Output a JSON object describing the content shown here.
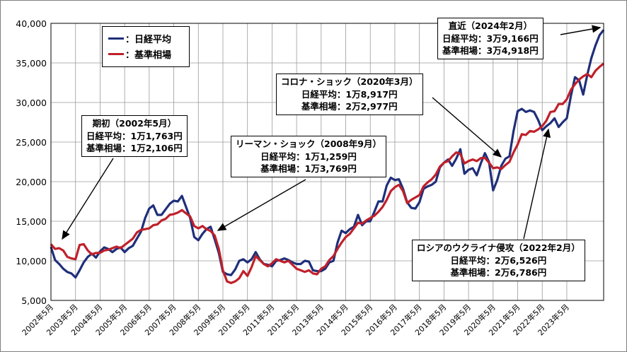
{
  "chart_data": {
    "type": "line",
    "x_start": "2002年5月",
    "y_ticks": [
      "40,000",
      "35,000",
      "30,000",
      "25,000",
      "20,000",
      "15,000",
      "10,000",
      "5,000"
    ],
    "ylim": [
      5000,
      40000
    ],
    "x_ticks": [
      "2002年5月",
      "2003年5月",
      "2004年5月",
      "2005年5月",
      "2006年5月",
      "2007年5月",
      "2008年5月",
      "2009年5月",
      "2010年5月",
      "2011年5月",
      "2012年5月",
      "2013年5月",
      "2014年5月",
      "2015年5月",
      "2016年5月",
      "2017年5月",
      "2018年5月",
      "2019年5月",
      "2020年5月",
      "2021年5月",
      "2022年5月",
      "2023年5月"
    ],
    "grid": true,
    "legend_position": "top-left",
    "series": [
      {
        "name": "日経平均",
        "color": "#1f2f7a",
        "points": [
          [
            0,
            11763
          ],
          [
            2,
            10100
          ],
          [
            4,
            9600
          ],
          [
            6,
            9000
          ],
          [
            8,
            8600
          ],
          [
            10,
            8400
          ],
          [
            12,
            7900
          ],
          [
            14,
            8800
          ],
          [
            16,
            9800
          ],
          [
            18,
            10500
          ],
          [
            20,
            10900
          ],
          [
            22,
            10400
          ],
          [
            24,
            11200
          ],
          [
            26,
            11700
          ],
          [
            28,
            11500
          ],
          [
            30,
            11100
          ],
          [
            32,
            11500
          ],
          [
            34,
            11700
          ],
          [
            36,
            11100
          ],
          [
            38,
            11600
          ],
          [
            40,
            11900
          ],
          [
            42,
            12800
          ],
          [
            44,
            13700
          ],
          [
            46,
            15400
          ],
          [
            48,
            16600
          ],
          [
            50,
            17000
          ],
          [
            52,
            15800
          ],
          [
            54,
            15800
          ],
          [
            56,
            16500
          ],
          [
            58,
            17200
          ],
          [
            60,
            17600
          ],
          [
            62,
            17500
          ],
          [
            64,
            18200
          ],
          [
            66,
            16800
          ],
          [
            68,
            15400
          ],
          [
            70,
            13000
          ],
          [
            72,
            12600
          ],
          [
            74,
            13400
          ],
          [
            76,
            14000
          ],
          [
            78,
            14300
          ],
          [
            80,
            12700
          ],
          [
            82,
            11000
          ],
          [
            84,
            8600
          ],
          [
            86,
            8300
          ],
          [
            88,
            8200
          ],
          [
            90,
            8900
          ],
          [
            92,
            10000
          ],
          [
            94,
            10200
          ],
          [
            96,
            9800
          ],
          [
            98,
            10200
          ],
          [
            100,
            11100
          ],
          [
            102,
            10200
          ],
          [
            104,
            9600
          ],
          [
            106,
            9500
          ],
          [
            108,
            9300
          ],
          [
            110,
            10000
          ],
          [
            112,
            10100
          ],
          [
            114,
            10300
          ],
          [
            116,
            10100
          ],
          [
            118,
            9800
          ],
          [
            120,
            9600
          ],
          [
            122,
            9600
          ],
          [
            124,
            10000
          ],
          [
            126,
            9900
          ],
          [
            128,
            8800
          ],
          [
            130,
            8700
          ],
          [
            132,
            8700
          ],
          [
            134,
            9000
          ],
          [
            136,
            9800
          ],
          [
            138,
            10000
          ],
          [
            140,
            12300
          ],
          [
            142,
            13800
          ],
          [
            144,
            13500
          ],
          [
            146,
            14000
          ],
          [
            148,
            14300
          ],
          [
            150,
            15800
          ],
          [
            152,
            14500
          ],
          [
            154,
            15000
          ],
          [
            156,
            15000
          ],
          [
            158,
            16200
          ],
          [
            160,
            17500
          ],
          [
            162,
            17500
          ],
          [
            164,
            19500
          ],
          [
            166,
            20500
          ],
          [
            168,
            20200
          ],
          [
            170,
            20300
          ],
          [
            172,
            19100
          ],
          [
            174,
            17400
          ],
          [
            176,
            16700
          ],
          [
            178,
            16600
          ],
          [
            180,
            17400
          ],
          [
            182,
            19100
          ],
          [
            184,
            19400
          ],
          [
            186,
            19600
          ],
          [
            188,
            20000
          ],
          [
            190,
            21800
          ],
          [
            192,
            22400
          ],
          [
            194,
            22800
          ],
          [
            196,
            22000
          ],
          [
            198,
            22900
          ],
          [
            200,
            24100
          ],
          [
            202,
            21000
          ],
          [
            204,
            21500
          ],
          [
            206,
            21700
          ],
          [
            208,
            20800
          ],
          [
            210,
            22300
          ],
          [
            212,
            23600
          ],
          [
            214,
            22500
          ],
          [
            216,
            18900
          ],
          [
            218,
            20200
          ],
          [
            220,
            22000
          ],
          [
            222,
            22900
          ],
          [
            224,
            23200
          ],
          [
            226,
            26400
          ],
          [
            228,
            28900
          ],
          [
            230,
            29200
          ],
          [
            232,
            28800
          ],
          [
            234,
            29000
          ],
          [
            236,
            28800
          ],
          [
            238,
            27800
          ],
          [
            240,
            26500
          ],
          [
            242,
            27000
          ],
          [
            244,
            27400
          ],
          [
            246,
            28000
          ],
          [
            248,
            26900
          ],
          [
            250,
            27500
          ],
          [
            252,
            28000
          ],
          [
            254,
            30800
          ],
          [
            256,
            33200
          ],
          [
            258,
            32800
          ],
          [
            260,
            31000
          ],
          [
            262,
            33500
          ],
          [
            264,
            35600
          ],
          [
            266,
            37200
          ],
          [
            268,
            38500
          ],
          [
            270,
            39166
          ]
        ]
      },
      {
        "name": "基準相場",
        "color": "#c0202a",
        "points": [
          [
            0,
            12106
          ],
          [
            2,
            11500
          ],
          [
            4,
            11600
          ],
          [
            6,
            11300
          ],
          [
            8,
            10500
          ],
          [
            10,
            10300
          ],
          [
            12,
            10200
          ],
          [
            14,
            12000
          ],
          [
            16,
            12100
          ],
          [
            18,
            11300
          ],
          [
            20,
            10800
          ],
          [
            22,
            11000
          ],
          [
            24,
            11000
          ],
          [
            26,
            11300
          ],
          [
            28,
            11400
          ],
          [
            30,
            11600
          ],
          [
            32,
            11800
          ],
          [
            34,
            11600
          ],
          [
            36,
            12000
          ],
          [
            38,
            12400
          ],
          [
            40,
            12800
          ],
          [
            42,
            13600
          ],
          [
            44,
            13900
          ],
          [
            46,
            14000
          ],
          [
            48,
            14100
          ],
          [
            50,
            14500
          ],
          [
            52,
            14600
          ],
          [
            54,
            15100
          ],
          [
            56,
            15300
          ],
          [
            58,
            15800
          ],
          [
            60,
            15900
          ],
          [
            62,
            16100
          ],
          [
            64,
            16400
          ],
          [
            66,
            16000
          ],
          [
            68,
            15600
          ],
          [
            70,
            14400
          ],
          [
            72,
            14100
          ],
          [
            74,
            14400
          ],
          [
            76,
            14000
          ],
          [
            78,
            13769
          ],
          [
            80,
            13200
          ],
          [
            82,
            11500
          ],
          [
            84,
            8800
          ],
          [
            86,
            7400
          ],
          [
            88,
            7200
          ],
          [
            90,
            7400
          ],
          [
            92,
            7800
          ],
          [
            94,
            8700
          ],
          [
            96,
            8100
          ],
          [
            98,
            9200
          ],
          [
            100,
            10600
          ],
          [
            102,
            10100
          ],
          [
            104,
            9600
          ],
          [
            106,
            9300
          ],
          [
            108,
            9700
          ],
          [
            110,
            10200
          ],
          [
            112,
            10000
          ],
          [
            114,
            9800
          ],
          [
            116,
            10000
          ],
          [
            118,
            9500
          ],
          [
            120,
            9000
          ],
          [
            122,
            8800
          ],
          [
            124,
            8600
          ],
          [
            126,
            8800
          ],
          [
            128,
            8400
          ],
          [
            130,
            8300
          ],
          [
            132,
            9000
          ],
          [
            134,
            9300
          ],
          [
            136,
            10100
          ],
          [
            138,
            10600
          ],
          [
            140,
            11500
          ],
          [
            142,
            12300
          ],
          [
            144,
            13000
          ],
          [
            146,
            13400
          ],
          [
            148,
            14100
          ],
          [
            150,
            14800
          ],
          [
            152,
            14700
          ],
          [
            154,
            15100
          ],
          [
            156,
            15400
          ],
          [
            158,
            15700
          ],
          [
            160,
            16200
          ],
          [
            162,
            16800
          ],
          [
            164,
            17700
          ],
          [
            166,
            18800
          ],
          [
            168,
            19300
          ],
          [
            170,
            19600
          ],
          [
            172,
            18800
          ],
          [
            174,
            17300
          ],
          [
            176,
            17700
          ],
          [
            178,
            18000
          ],
          [
            180,
            18300
          ],
          [
            182,
            19400
          ],
          [
            184,
            19900
          ],
          [
            186,
            20300
          ],
          [
            188,
            20900
          ],
          [
            190,
            21900
          ],
          [
            192,
            22400
          ],
          [
            194,
            22600
          ],
          [
            196,
            23200
          ],
          [
            198,
            23700
          ],
          [
            200,
            23500
          ],
          [
            202,
            22300
          ],
          [
            204,
            22600
          ],
          [
            206,
            22800
          ],
          [
            208,
            22600
          ],
          [
            210,
            22977
          ],
          [
            212,
            23000
          ],
          [
            214,
            22400
          ],
          [
            216,
            21700
          ],
          [
            218,
            21800
          ],
          [
            220,
            21600
          ],
          [
            222,
            22100
          ],
          [
            224,
            22500
          ],
          [
            226,
            23700
          ],
          [
            228,
            24700
          ],
          [
            230,
            26000
          ],
          [
            232,
            25900
          ],
          [
            234,
            26400
          ],
          [
            236,
            26300
          ],
          [
            238,
            26600
          ],
          [
            240,
            27000
          ],
          [
            242,
            27700
          ],
          [
            244,
            28800
          ],
          [
            246,
            28900
          ],
          [
            248,
            29800
          ],
          [
            250,
            29800
          ],
          [
            252,
            30400
          ],
          [
            254,
            31600
          ],
          [
            256,
            32300
          ],
          [
            258,
            32900
          ],
          [
            260,
            33300
          ],
          [
            262,
            33600
          ],
          [
            264,
            33200
          ],
          [
            266,
            34000
          ],
          [
            268,
            34500
          ],
          [
            270,
            34918
          ]
        ]
      }
    ],
    "annotations": [
      {
        "lines": [
          "期初（2002年5月）",
          "日経平均：1万1,763円",
          "基準相場：1万2,106円"
        ]
      },
      {
        "lines": [
          "リーマン・ショック（2008年9月）",
          "日経平均：1万1,259円",
          "基準相場：1万3,769円"
        ]
      },
      {
        "lines": [
          "コロナ・ショック（2020年3月）",
          "日経平均：1万8,917円",
          "基準相場：2万2,977円"
        ]
      },
      {
        "lines": [
          "ロシアのウクライナ侵攻（2022年2月）",
          "日経平均：2万6,526円",
          "基準相場：2万6,786円"
        ]
      },
      {
        "lines": [
          "直近（2024年2月）",
          "日経平均：3万9,166円",
          "基準相場：3万4,918円"
        ]
      }
    ]
  }
}
